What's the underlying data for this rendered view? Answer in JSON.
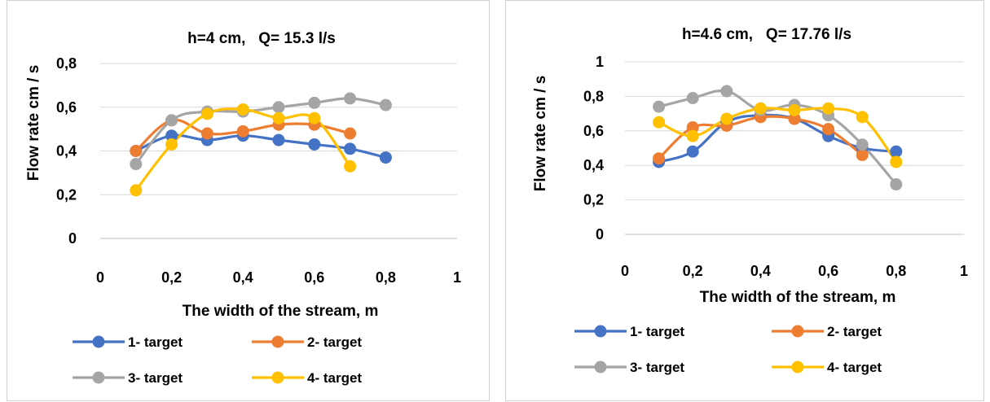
{
  "chart_data": [
    {
      "type": "line",
      "title": "h=4 cm,   Q= 15.3 l/s",
      "xlabel": "The width of the stream, m",
      "ylabel": "Flow rate cm / s",
      "xlim": [
        0,
        1
      ],
      "ylim": [
        0,
        0.8
      ],
      "xticks": [
        "0",
        "0,2",
        "0,4",
        "0,6",
        "0,8",
        "1"
      ],
      "yticks": [
        "0",
        "0,2",
        "0,4",
        "0,6",
        "0,8"
      ],
      "grid": "horizontal",
      "legend": "bottom",
      "series": [
        {
          "name": "1- target",
          "color": "#4472C4",
          "x": [
            0.1,
            0.2,
            0.3,
            0.4,
            0.5,
            0.6,
            0.7,
            0.8
          ],
          "y": [
            0.4,
            0.47,
            0.45,
            0.47,
            0.45,
            0.43,
            0.41,
            0.37
          ]
        },
        {
          "name": "2- target",
          "color": "#ED7D31",
          "x": [
            0.1,
            0.2,
            0.3,
            0.4,
            0.5,
            0.6,
            0.7
          ],
          "y": [
            0.4,
            0.54,
            0.48,
            0.49,
            0.52,
            0.52,
            0.48
          ]
        },
        {
          "name": "3- target",
          "color": "#A5A5A5",
          "x": [
            0.1,
            0.2,
            0.3,
            0.4,
            0.5,
            0.6,
            0.7,
            0.8
          ],
          "y": [
            0.34,
            0.54,
            0.58,
            0.58,
            0.6,
            0.62,
            0.64,
            0.61
          ]
        },
        {
          "name": "4- target",
          "color": "#FFC000",
          "x": [
            0.1,
            0.2,
            0.3,
            0.4,
            0.5,
            0.6,
            0.7
          ],
          "y": [
            0.22,
            0.43,
            0.57,
            0.59,
            0.55,
            0.55,
            0.33
          ]
        }
      ]
    },
    {
      "type": "line",
      "title": "h=4.6 cm,   Q= 17.76 l/s",
      "xlabel": "The width of the stream, m",
      "ylabel": "Flow rate cm / s",
      "xlim": [
        0,
        1
      ],
      "ylim": [
        0,
        1
      ],
      "xticks": [
        "0",
        "0,2",
        "0,4",
        "0,6",
        "0,8",
        "1"
      ],
      "yticks": [
        "0",
        "0,2",
        "0,4",
        "0,6",
        "0,8",
        "1"
      ],
      "grid": "horizontal",
      "legend": "bottom",
      "series": [
        {
          "name": "1- target",
          "color": "#4472C4",
          "x": [
            0.1,
            0.2,
            0.3,
            0.4,
            0.5,
            0.6,
            0.7,
            0.8
          ],
          "y": [
            0.42,
            0.48,
            0.65,
            0.69,
            0.67,
            0.57,
            0.5,
            0.48
          ]
        },
        {
          "name": "2- target",
          "color": "#ED7D31",
          "x": [
            0.1,
            0.2,
            0.3,
            0.4,
            0.5,
            0.6,
            0.7
          ],
          "y": [
            0.44,
            0.62,
            0.63,
            0.68,
            0.67,
            0.61,
            0.46
          ]
        },
        {
          "name": "3- target",
          "color": "#A5A5A5",
          "x": [
            0.1,
            0.2,
            0.3,
            0.4,
            0.5,
            0.6,
            0.7,
            0.8
          ],
          "y": [
            0.74,
            0.79,
            0.83,
            0.72,
            0.75,
            0.69,
            0.52,
            0.29
          ]
        },
        {
          "name": "4- target",
          "color": "#FFC000",
          "x": [
            0.1,
            0.2,
            0.3,
            0.4,
            0.5,
            0.6,
            0.7,
            0.8
          ],
          "y": [
            0.65,
            0.57,
            0.67,
            0.73,
            0.72,
            0.73,
            0.68,
            0.42
          ]
        }
      ]
    }
  ]
}
